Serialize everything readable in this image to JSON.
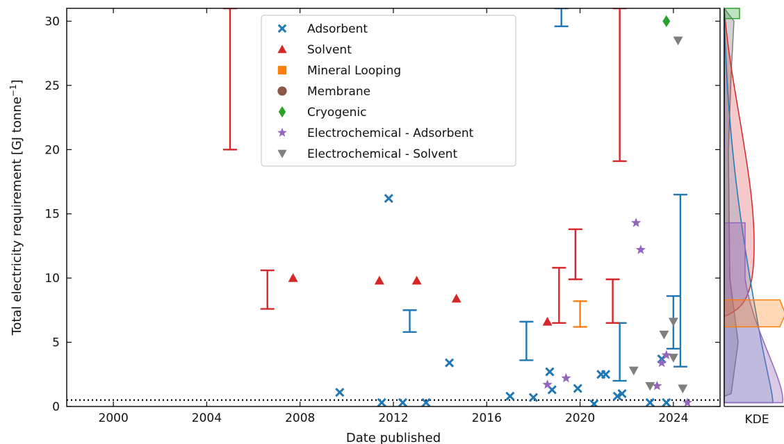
{
  "chart_data": {
    "type": "scatter",
    "xlabel": "Date published",
    "ylabel_main": "Total electricity requirement [GJ tonne",
    "ylabel_sup": "−1",
    "ylabel_end": "]",
    "kde_label": "KDE",
    "xlim": [
      1998,
      2026
    ],
    "ylim": [
      0,
      31
    ],
    "xticks": [
      2000,
      2004,
      2008,
      2012,
      2016,
      2020,
      2024
    ],
    "yticks": [
      0,
      5,
      10,
      15,
      20,
      25,
      30
    ],
    "reference_line": {
      "y": 0.5,
      "style": "dotted"
    },
    "legend_position": "top-center",
    "series": [
      {
        "name": "Adsorbent",
        "marker": "x",
        "color": "#1f77b4",
        "points": [
          [
            2009.7,
            1.1
          ],
          [
            2011.5,
            0.3
          ],
          [
            2011.8,
            16.2
          ],
          [
            2012.4,
            0.3
          ],
          [
            2013.4,
            0.3
          ],
          [
            2014.4,
            3.4
          ],
          [
            2017.0,
            0.8
          ],
          [
            2018.0,
            0.7
          ],
          [
            2018.7,
            2.7
          ],
          [
            2018.8,
            1.3
          ],
          [
            2019.9,
            1.4
          ],
          [
            2020.6,
            0.2
          ],
          [
            2020.9,
            2.5
          ],
          [
            2021.1,
            2.5
          ],
          [
            2021.6,
            0.8
          ],
          [
            2021.8,
            1.0
          ],
          [
            2023.0,
            0.3
          ],
          [
            2023.5,
            3.7
          ],
          [
            2023.7,
            0.3
          ]
        ],
        "ranges": [
          [
            2012.7,
            5.8,
            7.5
          ],
          [
            2017.7,
            3.6,
            6.6
          ],
          [
            2019.2,
            29.6,
            31
          ],
          [
            2021.7,
            2.0,
            6.5
          ],
          [
            2024.0,
            4.5,
            8.6
          ],
          [
            2024.3,
            3.1,
            16.5
          ]
        ]
      },
      {
        "name": "Solvent",
        "marker": "triangle-up",
        "color": "#d62728",
        "points": [
          [
            2007.7,
            10.0
          ],
          [
            2011.4,
            9.8
          ],
          [
            2013.0,
            9.8
          ],
          [
            2014.7,
            8.4
          ],
          [
            2018.6,
            6.6
          ]
        ],
        "ranges": [
          [
            2005.0,
            20.0,
            31
          ],
          [
            2006.6,
            7.6,
            10.6
          ],
          [
            2019.1,
            6.5,
            10.8
          ],
          [
            2019.8,
            9.9,
            13.8
          ],
          [
            2021.4,
            6.5,
            9.9
          ],
          [
            2021.7,
            19.1,
            31
          ]
        ]
      },
      {
        "name": "Mineral Looping",
        "marker": "square",
        "color": "#ff7f0e",
        "points": [],
        "ranges": [
          [
            2020.0,
            6.2,
            8.2
          ]
        ]
      },
      {
        "name": "Membrane",
        "marker": "circle",
        "color": "#8c564b",
        "points": [],
        "ranges": []
      },
      {
        "name": "Cryogenic",
        "marker": "diamond",
        "color": "#2ca02c",
        "points": [
          [
            2023.7,
            30.0
          ]
        ],
        "ranges": []
      },
      {
        "name": "Electrochemical - Adsorbent",
        "marker": "star",
        "color": "#9467bd",
        "points": [
          [
            2018.6,
            1.7
          ],
          [
            2019.4,
            2.2
          ],
          [
            2022.4,
            14.3
          ],
          [
            2022.6,
            12.2
          ],
          [
            2023.3,
            1.6
          ],
          [
            2023.5,
            3.4
          ],
          [
            2023.7,
            4.0
          ],
          [
            2024.6,
            0.3
          ]
        ],
        "ranges": []
      },
      {
        "name": "Electrochemical - Solvent",
        "marker": "triangle-down",
        "color": "#7f7f7f",
        "points": [
          [
            2022.3,
            2.8
          ],
          [
            2023.0,
            1.6
          ],
          [
            2023.6,
            5.6
          ],
          [
            2024.0,
            6.6
          ],
          [
            2024.0,
            3.8
          ],
          [
            2024.2,
            28.5
          ],
          [
            2024.4,
            1.4
          ]
        ],
        "ranges": []
      }
    ]
  }
}
